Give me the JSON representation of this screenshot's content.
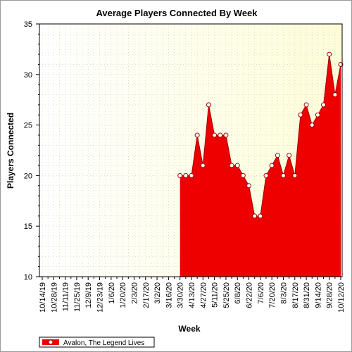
{
  "chart_data": {
    "type": "area",
    "title": "Average Players Connected By Week",
    "xlabel": "Week",
    "ylabel": "Players Connected",
    "ylim": [
      10,
      35
    ],
    "yticks": [
      10,
      15,
      20,
      25,
      30,
      35
    ],
    "grid": true,
    "legend_position": "bottom-left",
    "x_tick_labels": [
      "10/14/19",
      "10/28/19",
      "11/11/19",
      "11/25/19",
      "12/9/19",
      "12/23/19",
      "1/6/20",
      "1/20/20",
      "2/3/20",
      "2/17/20",
      "3/2/20",
      "3/16/20",
      "3/30/20",
      "4/13/20",
      "4/27/20",
      "5/11/20",
      "5/25/20",
      "6/8/20",
      "6/22/20",
      "7/6/20",
      "7/20/20",
      "8/3/20",
      "8/17/20",
      "8/31/20",
      "9/14/20",
      "9/28/20",
      "10/12/20"
    ],
    "x": [
      "10/14/19",
      "10/21/19",
      "10/28/19",
      "11/4/19",
      "11/11/19",
      "11/18/19",
      "11/25/19",
      "12/2/19",
      "12/9/19",
      "12/16/19",
      "12/23/19",
      "12/30/19",
      "1/6/20",
      "1/13/20",
      "1/20/20",
      "1/27/20",
      "2/3/20",
      "2/10/20",
      "2/17/20",
      "2/24/20",
      "3/2/20",
      "3/9/20",
      "3/16/20",
      "3/23/20",
      "3/30/20",
      "4/6/20",
      "4/13/20",
      "4/20/20",
      "4/27/20",
      "5/4/20",
      "5/11/20",
      "5/18/20",
      "5/25/20",
      "6/1/20",
      "6/8/20",
      "6/15/20",
      "6/22/20",
      "6/29/20",
      "7/6/20",
      "7/13/20",
      "7/20/20",
      "7/27/20",
      "8/3/20",
      "8/10/20",
      "8/17/20",
      "8/24/20",
      "8/31/20",
      "9/7/20",
      "9/14/20",
      "9/21/20",
      "9/28/20",
      "10/5/20",
      "10/12/20"
    ],
    "series": [
      {
        "name": "Avalon, The Legend Lives",
        "color": "#ee0000",
        "values": [
          null,
          null,
          null,
          null,
          null,
          null,
          null,
          null,
          null,
          null,
          null,
          null,
          null,
          null,
          null,
          null,
          null,
          null,
          null,
          null,
          null,
          null,
          null,
          null,
          20,
          20,
          20,
          24,
          21,
          27,
          24,
          24,
          24,
          21,
          21,
          20,
          19,
          16,
          16,
          20,
          21,
          22,
          20,
          22,
          20,
          26,
          27,
          25,
          26,
          27,
          32,
          28,
          31
        ]
      }
    ]
  }
}
